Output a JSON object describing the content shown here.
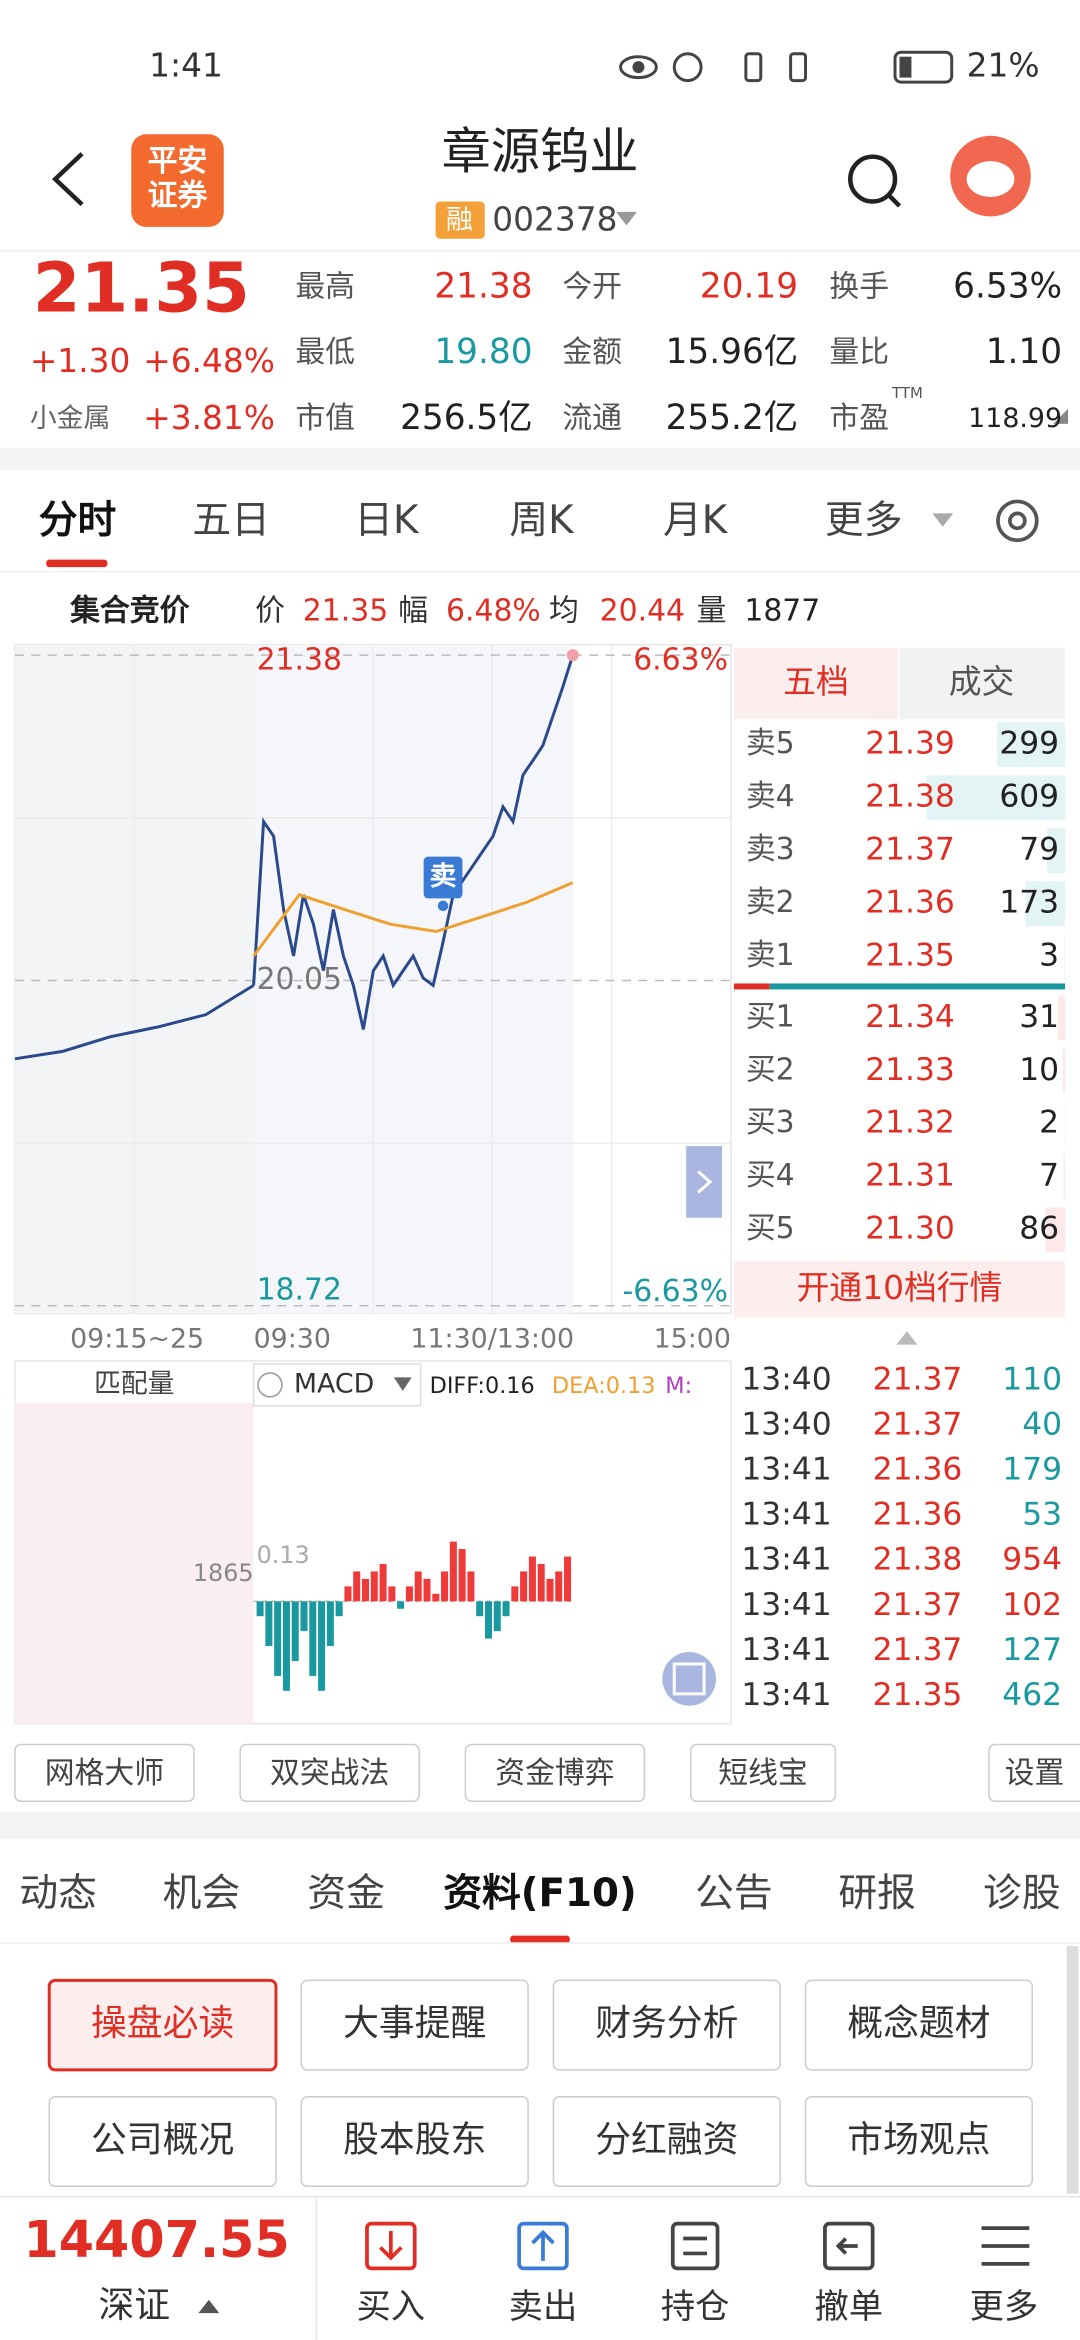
{
  "status": {
    "time": "1:41",
    "battery": "21%"
  },
  "header": {
    "logo": [
      "平安",
      "证券"
    ],
    "title": "章源钨业",
    "tag": "融",
    "code": "002378"
  },
  "quote": {
    "price": "21.35",
    "change": "+1.30",
    "change_pct": "+6.48%",
    "sector": "小金属",
    "sector_pct": "+3.81%",
    "ttm": "TTM",
    "stats": [
      {
        "label": "最高",
        "value": "21.38",
        "color": "#e02e24"
      },
      {
        "label": "今开",
        "value": "20.19",
        "color": "#e02e24"
      },
      {
        "label": "换手",
        "value": "6.53%",
        "color": "#222222"
      },
      {
        "label": "最低",
        "value": "19.80",
        "color": "#1a9aa0"
      },
      {
        "label": "金额",
        "value": "15.96亿",
        "color": "#222222"
      },
      {
        "label": "量比",
        "value": "1.10",
        "color": "#222222"
      },
      {
        "label": "市值",
        "value": "256.5亿",
        "color": "#222222"
      },
      {
        "label": "流通",
        "value": "255.2亿",
        "color": "#222222"
      },
      {
        "label": "市盈",
        "value": "118.99",
        "color": "#222222"
      }
    ]
  },
  "tabs": {
    "items": [
      "分时",
      "五日",
      "日K",
      "周K",
      "月K",
      "更多"
    ],
    "active": 0
  },
  "summary": {
    "title": "集合竞价",
    "items": [
      {
        "label": "价",
        "value": "21.35"
      },
      {
        "label": "幅",
        "value": "6.48%"
      },
      {
        "label": "均",
        "value": "20.44"
      },
      {
        "label": "量",
        "value": "1877"
      }
    ]
  },
  "chart_data": {
    "type": "line",
    "ylim": [
      18.72,
      21.38
    ],
    "yticks": [
      21.38,
      20.05,
      18.72
    ],
    "pct_labels": [
      "6.63%",
      "-6.63%"
    ],
    "x_labels": [
      "09:15~25",
      "09:30",
      "11:30/13:00",
      "15:00"
    ],
    "annotation": "卖",
    "series": [
      {
        "color": "#2b4a8c",
        "values": [
          19.73,
          19.76,
          19.82,
          19.86,
          19.91,
          20.03
        ]
      },
      {
        "color": "#2b4a8c",
        "values": [
          20.03,
          20.7,
          20.64,
          20.34,
          20.15,
          20.4,
          20.28,
          20.09,
          20.34,
          20.15,
          20.03,
          19.85,
          20.09,
          20.15,
          20.03,
          20.09,
          20.15,
          20.06,
          20.03,
          20.21,
          20.4,
          20.46,
          20.52,
          20.58,
          20.64,
          20.76,
          20.7,
          20.89,
          20.95,
          21.01,
          21.13,
          21.25,
          21.38
        ]
      },
      {
        "color": "#f0a030",
        "values": [
          20.15,
          20.4,
          20.34,
          20.28,
          20.25,
          20.31,
          20.37,
          20.45
        ]
      }
    ]
  },
  "macd": {
    "volume_label": "匹配量",
    "name": "MACD",
    "diff": "DIFF:0.16",
    "dea": "DEA:0.13",
    "m": "M:",
    "volume_value": "1865",
    "axis_value": "0.13",
    "ylim": [
      -0.13,
      0.13
    ],
    "values": [
      -0.01,
      -0.03,
      -0.05,
      -0.06,
      -0.04,
      -0.02,
      -0.05,
      -0.06,
      -0.03,
      -0.01,
      0.01,
      0.02,
      0.015,
      0.02,
      0.025,
      0.01,
      -0.005,
      0.01,
      0.02,
      0.015,
      0.005,
      0.02,
      0.04,
      0.035,
      0.02,
      -0.01,
      -0.025,
      -0.02,
      -0.01,
      0.01,
      0.02,
      0.03,
      0.025,
      0.015,
      0.02,
      0.03
    ]
  },
  "book": {
    "tabs": [
      "五档",
      "成交"
    ],
    "rows": [
      {
        "label": "卖5",
        "price": "21.39",
        "volume": 299
      },
      {
        "label": "卖4",
        "price": "21.38",
        "volume": 609
      },
      {
        "label": "卖3",
        "price": "21.37",
        "volume": 79
      },
      {
        "label": "卖2",
        "price": "21.36",
        "volume": 173
      },
      {
        "label": "卖1",
        "price": "21.35",
        "volume": 3
      },
      {
        "label": "买1",
        "price": "21.34",
        "volume": 31
      },
      {
        "label": "买2",
        "price": "21.33",
        "volume": 10
      },
      {
        "label": "买3",
        "price": "21.32",
        "volume": 2
      },
      {
        "label": "买4",
        "price": "21.31",
        "volume": 7
      },
      {
        "label": "买5",
        "price": "21.30",
        "volume": 86
      }
    ],
    "button": "开通10档行情"
  },
  "trades": [
    {
      "time": "13:40",
      "price": "21.37",
      "volume": 110,
      "color": "#1a9aa0"
    },
    {
      "time": "13:40",
      "price": "21.37",
      "volume": 40,
      "color": "#1a9aa0"
    },
    {
      "time": "13:41",
      "price": "21.36",
      "volume": 179,
      "color": "#1a9aa0"
    },
    {
      "time": "13:41",
      "price": "21.36",
      "volume": 53,
      "color": "#1a9aa0"
    },
    {
      "time": "13:41",
      "price": "21.38",
      "volume": 954,
      "color": "#e02e24"
    },
    {
      "time": "13:41",
      "price": "21.37",
      "volume": 102,
      "color": "#e02e24"
    },
    {
      "time": "13:41",
      "price": "21.37",
      "volume": 127,
      "color": "#1a9aa0"
    },
    {
      "time": "13:41",
      "price": "21.35",
      "volume": 462,
      "color": "#1a9aa0"
    }
  ],
  "tools": [
    "网格大师",
    "双突战法",
    "资金博弈",
    "短线宝",
    "设置"
  ],
  "sections": {
    "items": [
      "动态",
      "机会",
      "资金",
      "资料(F10)",
      "公告",
      "研报",
      "诊股"
    ],
    "active": 3
  },
  "buttons": {
    "items": [
      "操盘必读",
      "大事提醒",
      "财务分析",
      "概念题材",
      "公司概况",
      "股本股东",
      "分红融资",
      "市场观点"
    ],
    "active": 0
  },
  "bottom": {
    "index": "14407.55",
    "market": "深证",
    "actions": [
      "买入",
      "卖出",
      "持仓",
      "撤单",
      "更多"
    ]
  }
}
